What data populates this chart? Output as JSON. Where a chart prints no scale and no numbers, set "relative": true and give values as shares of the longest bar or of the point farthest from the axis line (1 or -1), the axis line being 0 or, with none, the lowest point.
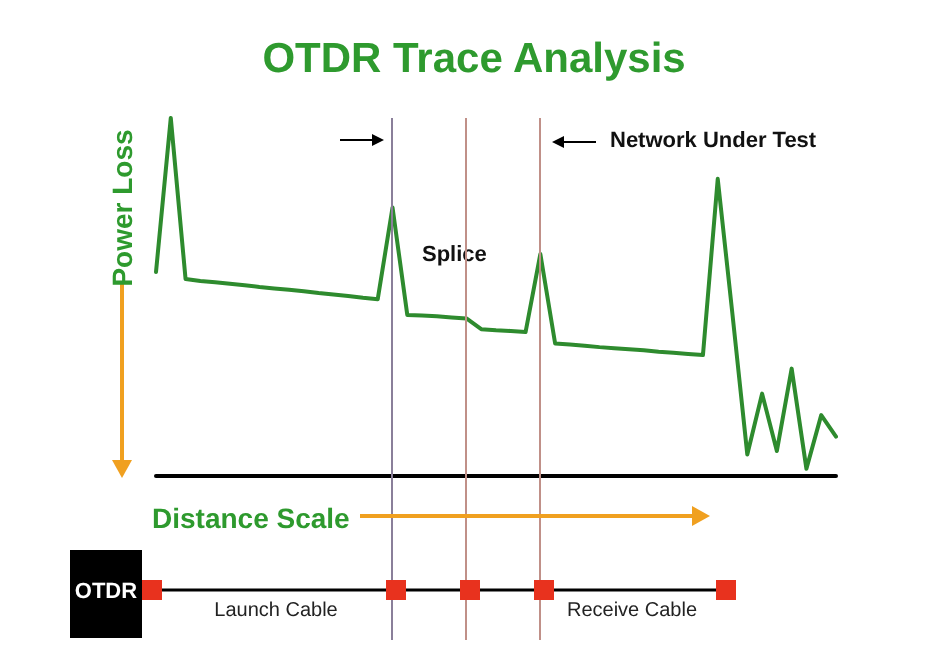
{
  "chart_data": {
    "type": "line",
    "title": "OTDR Trace Analysis",
    "xlabel": "Distance Scale",
    "ylabel": "Power Loss",
    "relative": true,
    "line_style": "solid",
    "categories": [
      null,
      null,
      null,
      null,
      null,
      null,
      null,
      null,
      null,
      null,
      null,
      null,
      null,
      null,
      null,
      null,
      null,
      null,
      null,
      null,
      null,
      null,
      null,
      null,
      null,
      null,
      null,
      null,
      null,
      null,
      null,
      null,
      null,
      null,
      null,
      null,
      null,
      null,
      null,
      null,
      null,
      null,
      null,
      null,
      null,
      null,
      null
    ],
    "series": [
      {
        "color": "#2e8b2e",
        "values": [
          0.57,
          1,
          0.55,
          0.545,
          0.541,
          0.537,
          0.533,
          0.528,
          0.524,
          0.52,
          0.516,
          0.511,
          0.507,
          0.503,
          0.498,
          0.494,
          0.75,
          0.45,
          0.448,
          0.446,
          0.443,
          0.44,
          0.41,
          0.407,
          0.405,
          0.402,
          0.62,
          0.37,
          0.367,
          0.364,
          0.36,
          0.357,
          0.354,
          0.351,
          0.347,
          0.344,
          0.341,
          0.338,
          0.83,
          0.45,
          0.06,
          0.23,
          0.07,
          0.3,
          0.02,
          0.17,
          0.11
        ]
      }
    ],
    "annotations": [
      "Network Under Test",
      "Splice",
      "OTDR",
      "Launch Cable",
      "Receive Cable"
    ]
  }
}
